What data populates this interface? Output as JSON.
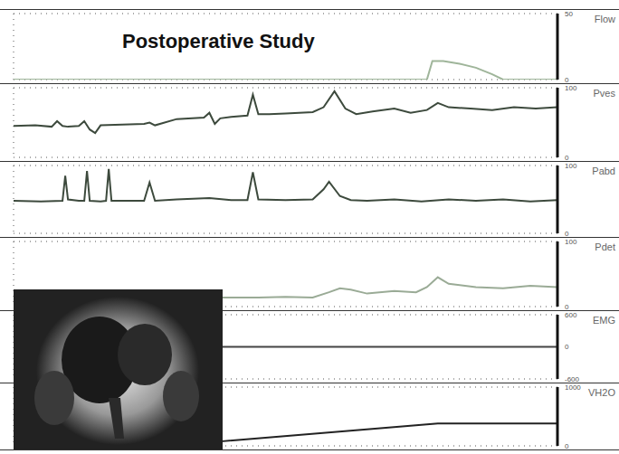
{
  "title": "Postoperative Study",
  "chart_data": [
    {
      "type": "line",
      "title": "Flow",
      "x": [
        0,
        76,
        77,
        79,
        82,
        85,
        88,
        90,
        100
      ],
      "values": [
        0,
        0,
        14,
        14,
        12,
        9,
        4,
        0,
        0
      ],
      "color": "#9fb59a",
      "xlim": [
        0,
        100
      ],
      "xticks": [
        0,
        10,
        20,
        30,
        40,
        50,
        60,
        70,
        80,
        90,
        100
      ],
      "ylim": [
        0,
        50
      ],
      "yticks": [
        0,
        50
      ],
      "grid": true,
      "tick_labels": "y"
    },
    {
      "type": "line",
      "title": "Pves",
      "x": [
        0,
        4,
        7,
        8,
        9,
        10,
        12,
        13,
        14,
        15,
        16,
        20,
        24,
        25,
        26,
        30,
        35,
        36,
        37,
        38,
        40,
        43,
        44,
        45,
        47,
        50,
        55,
        57,
        59,
        61,
        63,
        66,
        70,
        73,
        76,
        78,
        80,
        84,
        88,
        92,
        96,
        100
      ],
      "values": [
        45,
        46,
        44,
        52,
        45,
        44,
        45,
        52,
        40,
        35,
        46,
        47,
        48,
        50,
        46,
        55,
        57,
        64,
        48,
        56,
        58,
        60,
        90,
        62,
        62,
        63,
        65,
        72,
        95,
        70,
        62,
        66,
        70,
        64,
        68,
        78,
        72,
        70,
        68,
        72,
        70,
        72
      ],
      "color": "#3d4a3d",
      "xlim": [
        0,
        100
      ],
      "xticks": [
        0,
        10,
        20,
        30,
        40,
        50,
        60,
        70,
        80,
        90,
        100
      ],
      "ylim": [
        0,
        100
      ],
      "yticks": [
        0,
        100
      ],
      "grid": true,
      "tick_labels": "y"
    },
    {
      "type": "line",
      "title": "Pabd",
      "x": [
        0,
        5,
        9,
        9.5,
        10,
        12,
        13,
        13.5,
        14,
        16,
        17,
        17.5,
        18,
        20,
        24,
        25,
        26,
        30,
        36,
        40,
        43,
        44,
        45,
        50,
        55,
        57,
        58,
        60,
        62,
        65,
        70,
        75,
        80,
        85,
        90,
        95,
        100
      ],
      "values": [
        48,
        47,
        48,
        85,
        50,
        48,
        48,
        92,
        48,
        47,
        48,
        95,
        48,
        48,
        48,
        75,
        48,
        50,
        52,
        49,
        49,
        90,
        50,
        49,
        50,
        65,
        76,
        55,
        49,
        48,
        50,
        47,
        50,
        48,
        50,
        47,
        49
      ],
      "color": "#3d4a3d",
      "xlim": [
        0,
        100
      ],
      "xticks": [
        0,
        10,
        20,
        30,
        40,
        50,
        60,
        70,
        80,
        90,
        100
      ],
      "ylim": [
        0,
        100
      ],
      "yticks": [
        0,
        100
      ],
      "grid": true,
      "tick_labels": "y"
    },
    {
      "type": "line",
      "title": "Pdet",
      "x": [
        38,
        45,
        50,
        55,
        58,
        60,
        62,
        65,
        70,
        74,
        76,
        78,
        80,
        85,
        90,
        95,
        100
      ],
      "values": [
        14,
        14,
        15,
        14,
        22,
        28,
        26,
        20,
        24,
        22,
        30,
        45,
        35,
        30,
        28,
        32,
        30
      ],
      "color": "#9aab96",
      "xlim": [
        0,
        100
      ],
      "xticks": [
        0,
        10,
        20,
        30,
        40,
        50,
        60,
        70,
        80,
        90,
        100
      ],
      "ylim": [
        0,
        100
      ],
      "yticks": [
        0,
        100
      ],
      "grid": true,
      "tick_labels": "y"
    },
    {
      "type": "line",
      "title": "EMG",
      "x": [
        38,
        100
      ],
      "values": [
        0,
        0
      ],
      "color": "#444444",
      "xlim": [
        0,
        100
      ],
      "xticks": [
        0,
        10,
        20,
        30,
        40,
        50,
        60,
        70,
        80,
        90,
        100
      ],
      "ylim": [
        -600,
        600
      ],
      "yticks": [
        -600,
        0,
        600
      ],
      "grid": true,
      "tick_labels": "y"
    },
    {
      "type": "line",
      "title": "VH2O",
      "x": [
        38,
        78,
        100
      ],
      "values": [
        75,
        380,
        380
      ],
      "color": "#222222",
      "xlim": [
        0,
        100
      ],
      "xticks": [
        0,
        10,
        20,
        30,
        40,
        50,
        60,
        70,
        80,
        90,
        100
      ],
      "ylim": [
        0,
        1000
      ],
      "yticks": [
        0,
        1000
      ],
      "grid": true,
      "tick_labels": "y"
    }
  ]
}
